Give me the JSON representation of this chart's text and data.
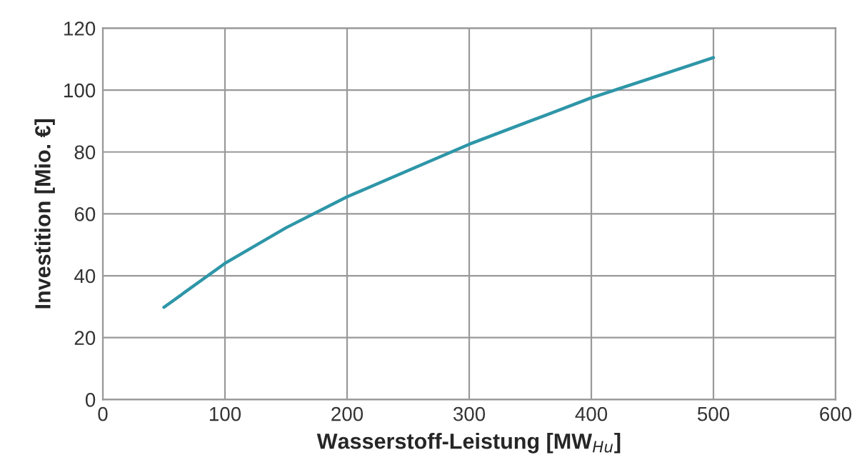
{
  "chart_data": {
    "type": "line",
    "xlabel": "Wasserstoff-Leistung [MW$_{Hu}$]",
    "ylabel": "Investition [Mio. €]",
    "x": [
      50,
      100,
      150,
      200,
      250,
      300,
      350,
      400,
      450,
      500
    ],
    "series": [
      {
        "color": "#2e96a8",
        "values": [
          29.8,
          44,
          55.5,
          65.5,
          74,
          82.5,
          90,
          97.5,
          104,
          110.5
        ]
      }
    ],
    "xlim": [
      0,
      600
    ],
    "xticks": [
      0,
      100,
      200,
      300,
      400,
      500,
      600
    ],
    "ylim": [
      0,
      120
    ],
    "yticks": [
      0,
      20,
      40,
      60,
      80,
      100,
      120
    ],
    "grid": true,
    "marker": "none",
    "line_style": "solid"
  }
}
